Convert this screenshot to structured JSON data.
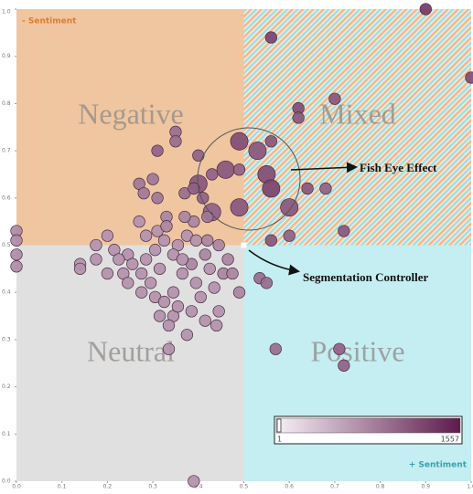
{
  "chart_data": {
    "type": "scatter",
    "annotations": {
      "quadrants": [
        "Negative",
        "Mixed",
        "Neutral",
        "Positive"
      ],
      "negative_end": "- Sentiment",
      "positive_end": "+ Sentiment",
      "fisheye": "Fish Eye Effect",
      "segmentation": "Segmentation Controller"
    },
    "xlim": [
      0,
      1
    ],
    "ylim": [
      0,
      1
    ],
    "xticks": [
      {
        "value": 0,
        "label": "0.0"
      },
      {
        "value": 0.1,
        "label": "0.1"
      },
      {
        "value": 0.2,
        "label": "0.2"
      },
      {
        "value": 0.3,
        "label": "0.3"
      },
      {
        "value": 0.4,
        "label": "0.4"
      },
      {
        "value": 0.5,
        "label": "0.5"
      },
      {
        "value": 0.6,
        "label": "0.6"
      },
      {
        "value": 0.7,
        "label": "0.7"
      },
      {
        "value": 0.8,
        "label": "0.8"
      },
      {
        "value": 0.9,
        "label": "0.9"
      },
      {
        "value": 1,
        "label": "1.0"
      }
    ],
    "yticks": [
      {
        "value": 0,
        "label": "0.0"
      },
      {
        "value": 0.1,
        "label": "0.1"
      },
      {
        "value": 0.2,
        "label": "0.2"
      },
      {
        "value": 0.3,
        "label": "0.3"
      },
      {
        "value": 0.4,
        "label": "0.4"
      },
      {
        "value": 0.5,
        "label": "0.5"
      },
      {
        "value": 0.6,
        "label": "0.6"
      },
      {
        "value": 0.7,
        "label": "0.7"
      },
      {
        "value": 0.8,
        "label": "0.8"
      },
      {
        "value": 0.9,
        "label": "0.9"
      },
      {
        "value": 1,
        "label": "1.0"
      }
    ],
    "colorlim": [
      1,
      1557
    ],
    "color_low": "#f6f0f6",
    "color_high": "#5e1a4d",
    "x": [
      0.9,
      1.0,
      0.56,
      0.7,
      0.62,
      0.62,
      0.49,
      0.56,
      0.53,
      0.55,
      0.56,
      0.6,
      0.64,
      0.68,
      0.72,
      0.6,
      0.56,
      0.49,
      0.43,
      0.46,
      0.43,
      0.49,
      0.4,
      0.4,
      0.35,
      0.35,
      0.31,
      0.3,
      0.27,
      0.28,
      0.31,
      0.37,
      0.39,
      0.41,
      0.42,
      0.39,
      0.37,
      0.33,
      0.31,
      0.27,
      0.33,
      0,
      0,
      0,
      0,
      0.14,
      0.14,
      0.175,
      0.175,
      0.2,
      0.215,
      0.2,
      0.235,
      0.245,
      0.275,
      0.275,
      0.295,
      0.305,
      0.315,
      0.325,
      0.345,
      0.345,
      0.335,
      0.355,
      0.365,
      0.385,
      0.395,
      0.405,
      0.415,
      0.425,
      0.435,
      0.445,
      0.455,
      0.465,
      0.44,
      0.49,
      0.385,
      0.375,
      0.335,
      0.245,
      0.285,
      0.305,
      0.325,
      0.355,
      0.375,
      0.395,
      0.42,
      0.445,
      0.255,
      0.225,
      0.285,
      0.345,
      0.365,
      0.315,
      0.475,
      0.415,
      0.39,
      0.535,
      0.55,
      0.57,
      0.71,
      0.72
    ],
    "values": [
      1.0,
      0.855,
      0.94,
      0.81,
      0.79,
      0.77,
      0.72,
      0.72,
      0.7,
      0.65,
      0.62,
      0.58,
      0.62,
      0.62,
      0.53,
      0.52,
      0.51,
      0.58,
      0.57,
      0.66,
      0.65,
      0.66,
      0.63,
      0.69,
      0.74,
      0.72,
      0.7,
      0.64,
      0.63,
      0.61,
      0.6,
      0.61,
      0.62,
      0.6,
      0.56,
      0.55,
      0.56,
      0.56,
      0.53,
      0.55,
      0.54,
      0.53,
      0.51,
      0.48,
      0.455,
      0.46,
      0.45,
      0.5,
      0.47,
      0.52,
      0.49,
      0.44,
      0.44,
      0.42,
      0.44,
      0.4,
      0.42,
      0.39,
      0.35,
      0.38,
      0.4,
      0.35,
      0.33,
      0.37,
      0.44,
      0.46,
      0.42,
      0.39,
      0.48,
      0.45,
      0.41,
      0.36,
      0.44,
      0.47,
      0.33,
      0.4,
      0.36,
      0.31,
      0.28,
      0.48,
      0.47,
      0.49,
      0.51,
      0.5,
      0.52,
      0.51,
      0.51,
      0.5,
      0.46,
      0.47,
      0.52,
      0.48,
      0.47,
      0.45,
      0.44,
      0.34,
      0.0,
      0.43,
      0.42,
      0.28,
      0.28,
      0.245
    ],
    "sizes": [
      1,
      1,
      1,
      1,
      1,
      1,
      2,
      1,
      2,
      2,
      2,
      2,
      1,
      1,
      1,
      1,
      1,
      2,
      2,
      2,
      1,
      1,
      2,
      1,
      1,
      1,
      1,
      1,
      1,
      1,
      1,
      1,
      1,
      1,
      1,
      1,
      1,
      1,
      1,
      1,
      1,
      1,
      1,
      1,
      1,
      1,
      1,
      1,
      1,
      1,
      1,
      1,
      1,
      1,
      1,
      1,
      1,
      1,
      1,
      1,
      1,
      1,
      1,
      1,
      1,
      1,
      1,
      1,
      1,
      1,
      1,
      1,
      1,
      1,
      1,
      1,
      1,
      1,
      1,
      1,
      1,
      1,
      1,
      1,
      1,
      1,
      1,
      1,
      1,
      1,
      1,
      1,
      1,
      1,
      1,
      1,
      1,
      1,
      1,
      1,
      1,
      1
    ],
    "counts": [
      1200,
      1000,
      1100,
      900,
      1000,
      900,
      1000,
      900,
      900,
      1000,
      1100,
      900,
      900,
      800,
      900,
      800,
      900,
      900,
      800,
      900,
      800,
      800,
      900,
      800,
      700,
      700,
      800,
      600,
      600,
      600,
      600,
      700,
      800,
      800,
      600,
      500,
      500,
      500,
      400,
      400,
      500,
      450,
      450,
      450,
      450,
      400,
      400,
      400,
      400,
      400,
      400,
      400,
      400,
      400,
      400,
      400,
      400,
      400,
      400,
      400,
      400,
      400,
      400,
      400,
      400,
      500,
      400,
      400,
      500,
      400,
      400,
      400,
      500,
      500,
      400,
      500,
      400,
      400,
      400,
      400,
      400,
      400,
      400,
      400,
      400,
      400,
      500,
      500,
      400,
      400,
      400,
      400,
      400,
      400,
      500,
      400,
      400,
      700,
      700,
      700,
      800,
      800
    ]
  }
}
